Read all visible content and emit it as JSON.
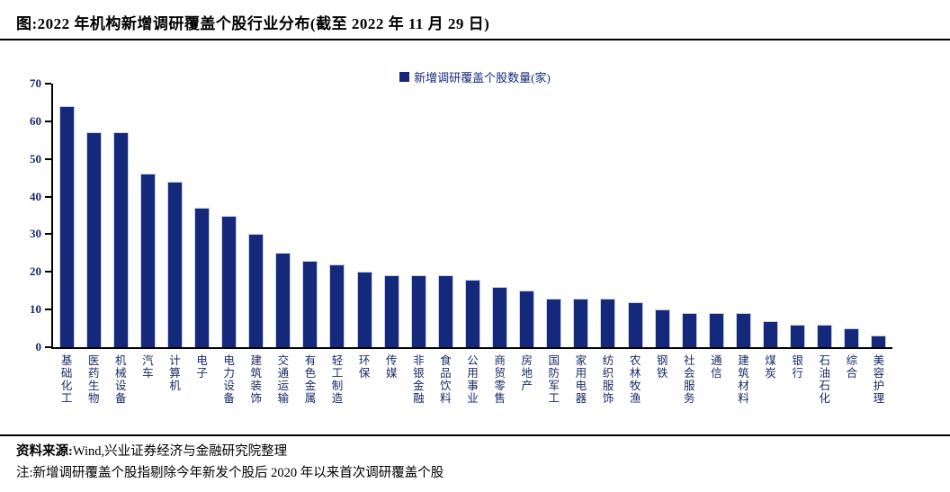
{
  "title": "图:2022 年机构新增调研覆盖个股行业分布(截至 2022 年 11 月 29 日)",
  "legend": {
    "label": "新增调研覆盖个股数量(家)",
    "marker_color": "#14297c"
  },
  "chart_data": {
    "type": "bar",
    "title": "2022 年机构新增调研覆盖个股行业分布(截至 2022 年 11 月 29 日)",
    "categories": [
      "基础化工",
      "医药生物",
      "机械设备",
      "汽车",
      "计算机",
      "电子",
      "电力设备",
      "建筑装饰",
      "交通运输",
      "有色金属",
      "轻工制造",
      "环保",
      "传媒",
      "非银金融",
      "食品饮料",
      "公用事业",
      "商贸零售",
      "房地产",
      "国防军工",
      "家用电器",
      "纺织服饰",
      "农林牧渔",
      "钢铁",
      "社会服务",
      "通信",
      "建筑材料",
      "煤炭",
      "银行",
      "石油石化",
      "综合",
      "美容护理"
    ],
    "values": [
      64,
      57,
      57,
      46,
      44,
      37,
      35,
      30,
      25,
      23,
      22,
      20,
      19,
      19,
      19,
      18,
      16,
      15,
      13,
      13,
      13,
      12,
      10,
      9,
      9,
      9,
      7,
      6,
      6,
      5,
      3
    ],
    "series_name": "新增调研覆盖个股数量(家)",
    "xlabel": "",
    "ylabel": "",
    "ylim": [
      0,
      70
    ],
    "y_ticks": [
      0,
      10,
      20,
      30,
      40,
      50,
      60,
      70
    ],
    "grid": false,
    "legend_position": "top-center",
    "bar_color": "#14297c",
    "axis_label_color": "#1b2a66"
  },
  "footer": {
    "source_label": "资料来源:",
    "source_text": "Wind,兴业证券经济与金融研究院整理",
    "note_text": "注:新增调研覆盖个股指剔除今年新发个股后 2020 年以来首次调研覆盖个股"
  },
  "colors": {
    "accent": "#14297c",
    "rule": "#000000",
    "background": "#ffffff"
  }
}
